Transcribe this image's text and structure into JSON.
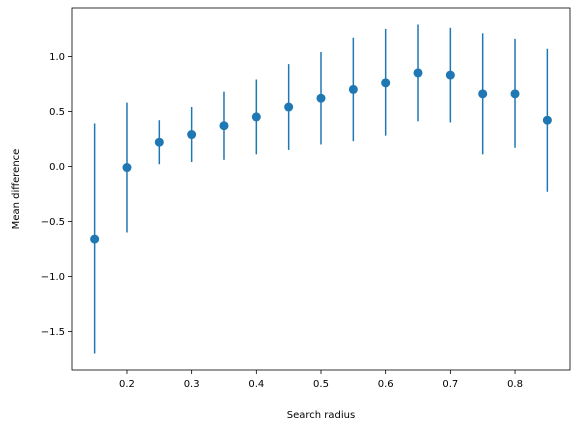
{
  "chart_data": {
    "type": "scatter",
    "title": "",
    "xlabel": "Search radius",
    "ylabel": "Mean difference",
    "xlim": [
      0.115,
      0.885
    ],
    "ylim": [
      -1.85,
      1.44
    ],
    "xticks": [
      0.2,
      0.3,
      0.4,
      0.5,
      0.6,
      0.7,
      0.8
    ],
    "xtick_labels": [
      "0.2",
      "0.3",
      "0.4",
      "0.5",
      "0.6",
      "0.7",
      "0.8"
    ],
    "yticks": [
      -1.5,
      -1.0,
      -0.5,
      0.0,
      0.5,
      1.0
    ],
    "ytick_labels": [
      "−1.5",
      "−1.0",
      "−0.5",
      "0.0",
      "0.5",
      "1.0"
    ],
    "grid": false,
    "color": "#1f77b4",
    "series": [
      {
        "points": [
          {
            "x": 0.15,
            "y": -0.66,
            "low": -1.7,
            "high": 0.39
          },
          {
            "x": 0.2,
            "y": -0.01,
            "low": -0.6,
            "high": 0.58
          },
          {
            "x": 0.25,
            "y": 0.22,
            "low": 0.02,
            "high": 0.42
          },
          {
            "x": 0.3,
            "y": 0.29,
            "low": 0.04,
            "high": 0.54
          },
          {
            "x": 0.35,
            "y": 0.37,
            "low": 0.06,
            "high": 0.68
          },
          {
            "x": 0.4,
            "y": 0.45,
            "low": 0.11,
            "high": 0.79
          },
          {
            "x": 0.45,
            "y": 0.54,
            "low": 0.15,
            "high": 0.93
          },
          {
            "x": 0.5,
            "y": 0.62,
            "low": 0.2,
            "high": 1.04
          },
          {
            "x": 0.55,
            "y": 0.7,
            "low": 0.23,
            "high": 1.17
          },
          {
            "x": 0.6,
            "y": 0.76,
            "low": 0.28,
            "high": 1.25
          },
          {
            "x": 0.65,
            "y": 0.85,
            "low": 0.41,
            "high": 1.29
          },
          {
            "x": 0.7,
            "y": 0.83,
            "low": 0.4,
            "high": 1.26
          },
          {
            "x": 0.75,
            "y": 0.66,
            "low": 0.11,
            "high": 1.21
          },
          {
            "x": 0.8,
            "y": 0.66,
            "low": 0.17,
            "high": 1.16
          },
          {
            "x": 0.85,
            "y": 0.42,
            "low": -0.23,
            "high": 1.07
          }
        ]
      }
    ]
  }
}
